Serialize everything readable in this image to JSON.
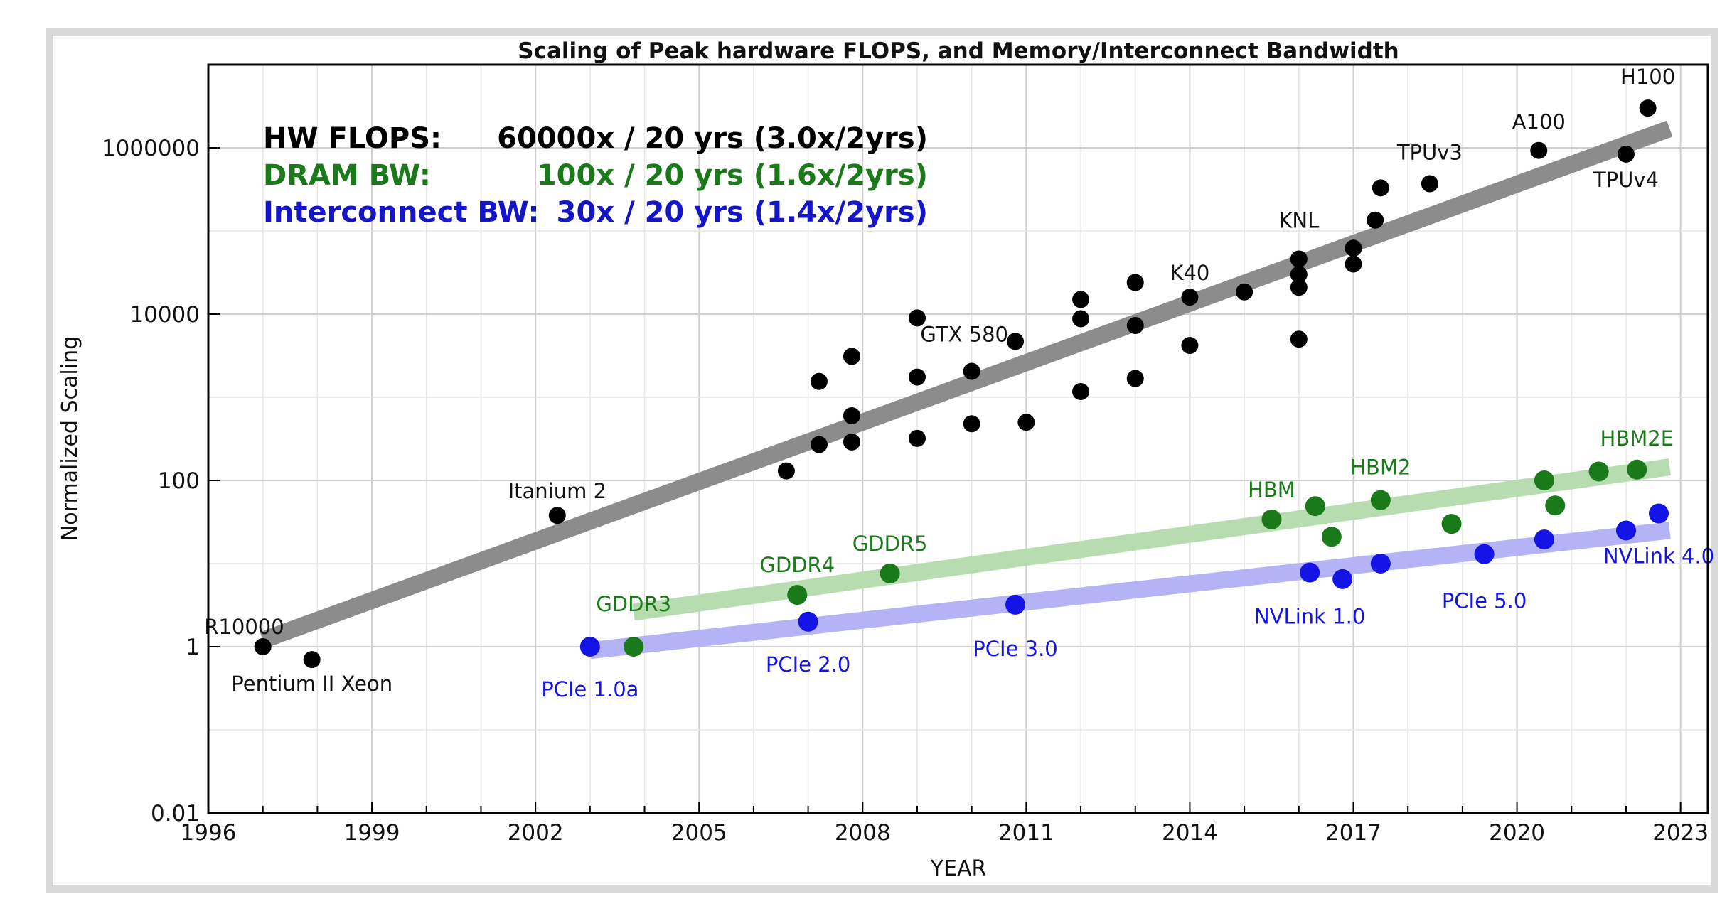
{
  "chart_data": {
    "type": "scatter",
    "title": "Scaling of Peak hardware FLOPS, and Memory/Interconnect Bandwidth",
    "xlabel": "YEAR",
    "ylabel": "Normalized Scaling",
    "xlim": [
      1996,
      2023.5
    ],
    "ylim": [
      0.01,
      10000000
    ],
    "yscale": "log",
    "grid": true,
    "x_ticks": [
      1996,
      1999,
      2002,
      2005,
      2008,
      2011,
      2014,
      2017,
      2020,
      2023
    ],
    "y_ticks": [
      {
        "value": 0.01,
        "label": "0.01"
      },
      {
        "value": 1,
        "label": "1"
      },
      {
        "value": 100,
        "label": "100"
      },
      {
        "value": 10000,
        "label": "10000"
      },
      {
        "value": 1000000,
        "label": "1000000"
      }
    ],
    "annotations": [
      {
        "name": "HW FLOPS:",
        "rate": "60000x / 20 yrs (3.0x/2yrs)",
        "color": "#000000"
      },
      {
        "name": "DRAM BW:",
        "rate": "100x / 20 yrs (1.6x/2yrs)",
        "color": "#1a7a1a"
      },
      {
        "name": "Interconnect BW:",
        "rate": "30x / 20 yrs (1.4x/2yrs)",
        "color": "#1414c8"
      }
    ],
    "series": [
      {
        "color": "#000000",
        "trend_color": "#8c8c8c",
        "trend": [
          [
            1997,
            1.2
          ],
          [
            2022.8,
            1700000
          ]
        ],
        "points": [
          {
            "x": 1997.0,
            "y": 1.0,
            "label": "R10000"
          },
          {
            "x": 1997.9,
            "y": 0.7,
            "label": "Pentium II Xeon"
          },
          {
            "x": 2002.4,
            "y": 38,
            "label": "Itanium 2"
          },
          {
            "x": 2006.6,
            "y": 130
          },
          {
            "x": 2007.2,
            "y": 1550
          },
          {
            "x": 2007.2,
            "y": 270
          },
          {
            "x": 2007.8,
            "y": 3100
          },
          {
            "x": 2007.8,
            "y": 600
          },
          {
            "x": 2007.8,
            "y": 290
          },
          {
            "x": 2009.0,
            "y": 9000
          },
          {
            "x": 2009.0,
            "y": 1750
          },
          {
            "x": 2009.0,
            "y": 320
          },
          {
            "x": 2010.0,
            "y": 2050
          },
          {
            "x": 2010.0,
            "y": 480
          },
          {
            "x": 2010.8,
            "y": 4700,
            "label": "GTX 580"
          },
          {
            "x": 2011.0,
            "y": 500
          },
          {
            "x": 2012.0,
            "y": 15000
          },
          {
            "x": 2012.0,
            "y": 8800
          },
          {
            "x": 2012.0,
            "y": 1170
          },
          {
            "x": 2013.0,
            "y": 24000
          },
          {
            "x": 2013.0,
            "y": 7300
          },
          {
            "x": 2013.0,
            "y": 1680
          },
          {
            "x": 2014.0,
            "y": 16000,
            "label": "K40"
          },
          {
            "x": 2014.0,
            "y": 4200
          },
          {
            "x": 2015.0,
            "y": 18500
          },
          {
            "x": 2016.0,
            "y": 46000,
            "label": "KNL"
          },
          {
            "x": 2016.0,
            "y": 30000
          },
          {
            "x": 2016.0,
            "y": 21000
          },
          {
            "x": 2016.0,
            "y": 5000
          },
          {
            "x": 2017.0,
            "y": 62000
          },
          {
            "x": 2017.0,
            "y": 40000
          },
          {
            "x": 2017.4,
            "y": 135000
          },
          {
            "x": 2017.5,
            "y": 330000
          },
          {
            "x": 2018.4,
            "y": 370000,
            "label": "TPUv3"
          },
          {
            "x": 2020.4,
            "y": 930000,
            "label": "A100"
          },
          {
            "x": 2022.4,
            "y": 3000000,
            "label": "H100"
          },
          {
            "x": 2022.0,
            "y": 840000,
            "label": "TPUv4"
          }
        ]
      },
      {
        "color": "#1a7a1a",
        "trend_color": "#b6dcb0",
        "trend": [
          [
            2003.8,
            2.6
          ],
          [
            2022.8,
            145
          ]
        ],
        "points": [
          {
            "x": 2003.8,
            "y": 1.0,
            "label": "GDDR3"
          },
          {
            "x": 2006.8,
            "y": 4.2,
            "label": "GDDR4"
          },
          {
            "x": 2008.5,
            "y": 7.6,
            "label": "GDDR5"
          },
          {
            "x": 2015.5,
            "y": 34,
            "label": "HBM"
          },
          {
            "x": 2016.3,
            "y": 49
          },
          {
            "x": 2016.6,
            "y": 21
          },
          {
            "x": 2017.5,
            "y": 58,
            "label": "HBM2"
          },
          {
            "x": 2018.8,
            "y": 30
          },
          {
            "x": 2020.5,
            "y": 100
          },
          {
            "x": 2020.7,
            "y": 50
          },
          {
            "x": 2021.5,
            "y": 128
          },
          {
            "x": 2022.2,
            "y": 135,
            "label": "HBM2E"
          }
        ]
      },
      {
        "color": "#1414e6",
        "trend_color": "#b3b3f5",
        "trend": [
          [
            2003.0,
            0.9
          ],
          [
            2022.8,
            25
          ]
        ],
        "points": [
          {
            "x": 2003.0,
            "y": 1.0,
            "label": "PCIe 1.0a"
          },
          {
            "x": 2007.0,
            "y": 2.0,
            "label": "PCIe 2.0"
          },
          {
            "x": 2010.8,
            "y": 3.2,
            "label": "PCIe 3.0"
          },
          {
            "x": 2016.2,
            "y": 7.8,
            "label": "NVLink 1.0"
          },
          {
            "x": 2016.8,
            "y": 6.5
          },
          {
            "x": 2017.5,
            "y": 10
          },
          {
            "x": 2019.4,
            "y": 13,
            "label": "PCIe 5.0"
          },
          {
            "x": 2020.5,
            "y": 19.5
          },
          {
            "x": 2022.0,
            "y": 25
          },
          {
            "x": 2022.6,
            "y": 40,
            "label": "NVLink 4.0"
          }
        ]
      }
    ]
  }
}
